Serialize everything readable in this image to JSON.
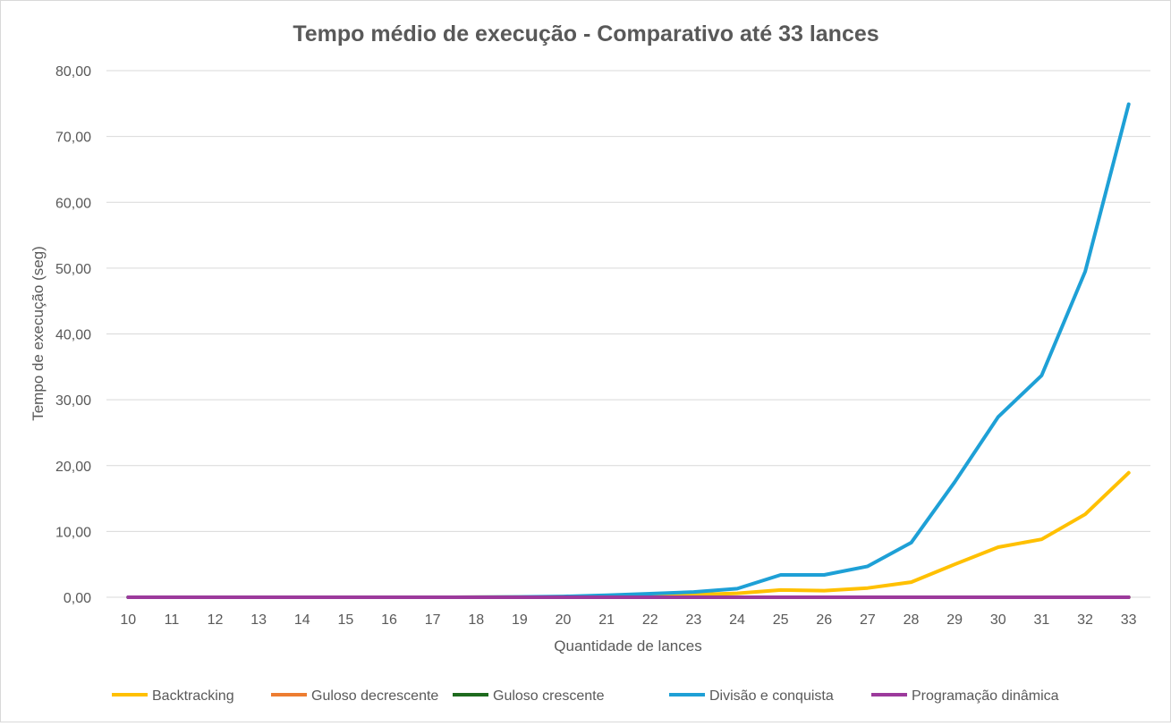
{
  "chart_data": {
    "type": "line",
    "title": "Tempo médio de execução - Comparativo até 33 lances",
    "xlabel": "Quantidade de lances",
    "ylabel": "Tempo de execução (seg)",
    "ylim": [
      0,
      80
    ],
    "yticks": [
      "0,00",
      "10,00",
      "20,00",
      "30,00",
      "40,00",
      "50,00",
      "60,00",
      "70,00",
      "80,00"
    ],
    "ytick_values": [
      0,
      10,
      20,
      30,
      40,
      50,
      60,
      70,
      80
    ],
    "grid": true,
    "legend_position": "bottom",
    "categories": [
      "10",
      "11",
      "12",
      "13",
      "14",
      "15",
      "16",
      "17",
      "18",
      "19",
      "20",
      "21",
      "22",
      "23",
      "24",
      "25",
      "26",
      "27",
      "28",
      "29",
      "30",
      "31",
      "32",
      "33"
    ],
    "series": [
      {
        "name": "Backtracking",
        "color": "#FFC000",
        "values": [
          0,
          0,
          0,
          0,
          0,
          0,
          0,
          0,
          0.02,
          0.04,
          0.08,
          0.15,
          0.25,
          0.4,
          0.6,
          1.1,
          1.0,
          1.4,
          2.3,
          5.0,
          7.6,
          8.8,
          12.6,
          18.9
        ]
      },
      {
        "name": "Guloso decrescente",
        "color": "#ED7D31",
        "values": [
          0,
          0,
          0,
          0,
          0,
          0,
          0,
          0,
          0,
          0,
          0,
          0,
          0,
          0,
          0,
          0,
          0,
          0,
          0,
          0,
          0,
          0,
          0,
          0
        ]
      },
      {
        "name": "Guloso crescente",
        "color": "#1E6B1E",
        "values": [
          0,
          0,
          0,
          0,
          0,
          0,
          0,
          0,
          0,
          0,
          0,
          0,
          0,
          0,
          0,
          0,
          0,
          0,
          0,
          0,
          0,
          0,
          0,
          0
        ]
      },
      {
        "name": "Divisão e conquista",
        "color": "#1EA0D6",
        "values": [
          0,
          0,
          0,
          0,
          0,
          0,
          0,
          0,
          0.02,
          0.05,
          0.12,
          0.3,
          0.55,
          0.8,
          1.3,
          3.4,
          3.4,
          4.7,
          8.3,
          17.5,
          27.4,
          33.7,
          49.5,
          74.9
        ]
      },
      {
        "name": "Programação dinâmica",
        "color": "#9C3A9C",
        "values": [
          0,
          0,
          0,
          0,
          0,
          0,
          0,
          0,
          0,
          0,
          0,
          0,
          0,
          0,
          0,
          0,
          0,
          0,
          0,
          0,
          0,
          0,
          0,
          0
        ]
      }
    ]
  }
}
